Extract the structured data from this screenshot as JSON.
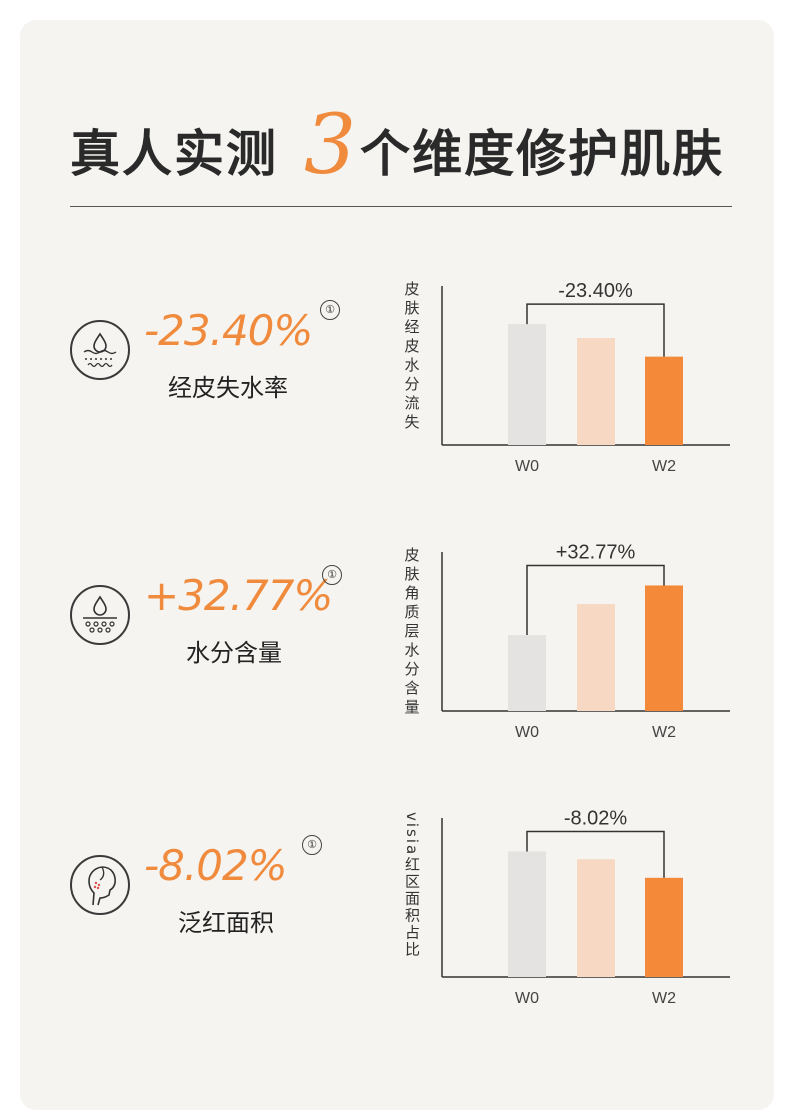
{
  "title": {
    "left": "真人实测",
    "number": "3",
    "right": "个维度修护肌肤"
  },
  "colors": {
    "accent": "#f08a3c",
    "bar_w0": "#e4e3e1",
    "bar_w1": "#f7d8c2",
    "bar_w2": "#f5893a",
    "text": "#2a2a2a"
  },
  "metrics": [
    {
      "icon": "water-drop-skin-icon",
      "value": "-23.40%",
      "note": "①",
      "label": "经皮失水率"
    },
    {
      "icon": "water-drop-layers-icon",
      "value": "+32.77%",
      "note": "①",
      "label": "水分含量"
    },
    {
      "icon": "face-redness-icon",
      "value": "-8.02%",
      "note": "①",
      "label": "泛红面积"
    }
  ],
  "chart_data": [
    {
      "type": "bar",
      "ylabel": "皮肤经皮水分流失",
      "ylabel_rotated": false,
      "categories": [
        "W0",
        "",
        "W2"
      ],
      "tick_labels": [
        "W0",
        "W2"
      ],
      "values": [
        0.78,
        0.69,
        0.57
      ],
      "ylim": [
        0,
        1
      ],
      "annotation": "-23.40%",
      "grid": false
    },
    {
      "type": "bar",
      "ylabel": "皮肤角质层水分含量",
      "ylabel_rotated": false,
      "categories": [
        "W0",
        "",
        "W2"
      ],
      "tick_labels": [
        "W0",
        "W2"
      ],
      "values": [
        0.49,
        0.69,
        0.81
      ],
      "ylim": [
        0,
        1
      ],
      "annotation": "+32.77%",
      "grid": false
    },
    {
      "type": "bar",
      "ylabel": "visia红区面积占比",
      "ylabel_rotated": true,
      "categories": [
        "W0",
        "",
        "W2"
      ],
      "tick_labels": [
        "W0",
        "W2"
      ],
      "values": [
        0.81,
        0.76,
        0.64
      ],
      "ylim": [
        0,
        1
      ],
      "annotation": "-8.02%",
      "grid": false
    }
  ]
}
